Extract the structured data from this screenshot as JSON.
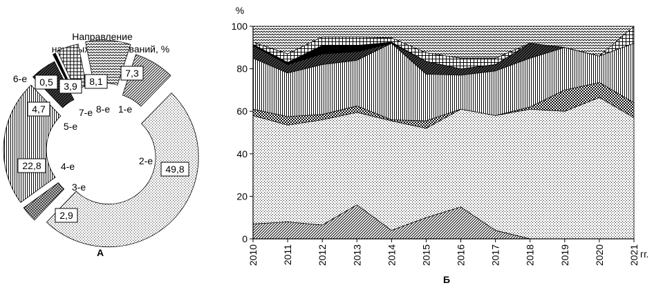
{
  "colors": {
    "ink": "#000000",
    "background": "#ffffff"
  },
  "chart_data": [
    {
      "type": "pie",
      "panel_label": "А",
      "title": "Направление научных исследований, %",
      "title_lines": [
        "Направление",
        "научных исследований, %"
      ],
      "style": "exploded donut with hatched segments",
      "slices": [
        {
          "category": "1-е",
          "value": 7.3,
          "value_label": "7,3",
          "pattern": "diagonal-hatch"
        },
        {
          "category": "2-е",
          "value": 49.8,
          "value_label": "49,8",
          "pattern": "fine-dots"
        },
        {
          "category": "3-е",
          "value": 2.9,
          "value_label": "2,9",
          "pattern": "checker"
        },
        {
          "category": "4-е",
          "value": 22.8,
          "value_label": "22,8",
          "pattern": "vertical-lines"
        },
        {
          "category": "5-е",
          "value": 4.7,
          "value_label": "4,7",
          "pattern": "dark-diagonal"
        },
        {
          "category": "6-е",
          "value": 0.5,
          "value_label": "0,5",
          "pattern": "solid-black"
        },
        {
          "category": "7-е",
          "value": 3.9,
          "value_label": "3,9",
          "pattern": "grid"
        },
        {
          "category": "8-е",
          "value": 8.1,
          "value_label": "8,1",
          "pattern": "zigzag"
        }
      ]
    },
    {
      "type": "area",
      "panel_label": "Б",
      "stacked": true,
      "x": [
        2010,
        2011,
        2012,
        2013,
        2014,
        2015,
        2016,
        2017,
        2018,
        2019,
        2020,
        2021
      ],
      "x_tick_labels": [
        "2010",
        "2011",
        "2012",
        "2013",
        "2014",
        "2015",
        "2016",
        "2017",
        "2018",
        "2019",
        "2020",
        "2021"
      ],
      "x_unit_label": "гг.",
      "y_unit_label": "%",
      "ylim": [
        0,
        100
      ],
      "y_ticks": [
        0,
        20,
        40,
        60,
        80,
        100
      ],
      "grid": false,
      "legend": "none",
      "series": [
        {
          "category": "1-е",
          "pattern": "diagonal-hatch",
          "values": [
            7,
            8,
            6.5,
            16,
            4,
            10,
            15,
            4,
            0,
            0,
            0,
            0
          ]
        },
        {
          "category": "2-е",
          "pattern": "fine-dots",
          "values": [
            51,
            45.5,
            49.5,
            43.5,
            51.5,
            42,
            46,
            54,
            61,
            60,
            66.5,
            57
          ]
        },
        {
          "category": "3-е",
          "pattern": "checker",
          "values": [
            3,
            4,
            2.5,
            3,
            0.5,
            3.5,
            0,
            0,
            1,
            10,
            7,
            7
          ]
        },
        {
          "category": "4-е",
          "pattern": "vertical-lines",
          "values": [
            24,
            20.5,
            23.5,
            21.5,
            36,
            22,
            16,
            21,
            23,
            20,
            12.5,
            28
          ]
        },
        {
          "category": "5-е",
          "pattern": "dark-diagonal",
          "values": [
            6,
            4,
            5,
            4,
            0,
            6,
            3,
            3,
            7,
            0,
            0,
            0
          ]
        },
        {
          "category": "6-е",
          "pattern": "solid-black",
          "values": [
            0.5,
            1,
            4,
            3,
            0.5,
            0,
            0,
            0,
            0,
            0,
            0,
            0
          ]
        },
        {
          "category": "7-е",
          "pattern": "grid",
          "values": [
            1,
            4,
            4,
            4,
            2,
            4,
            5,
            3,
            0,
            0,
            0,
            8
          ]
        },
        {
          "category": "8-е",
          "pattern": "zigzag",
          "values": [
            7.5,
            13,
            5,
            5,
            5.5,
            12.5,
            15,
            15,
            8,
            10,
            14,
            0
          ]
        }
      ]
    }
  ]
}
